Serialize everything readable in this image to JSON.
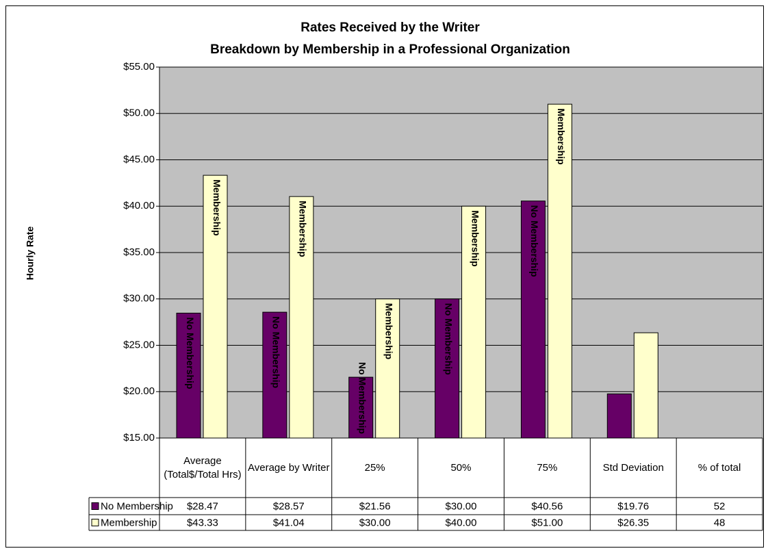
{
  "chart_data": {
    "type": "bar",
    "title": "Rates Received by the Writer",
    "subtitle": "Breakdown by Membership in a Professional Organization",
    "y_label": "Hourly Rate",
    "categories": [
      "Average (Total$/Total Hrs)",
      "Average by Writer",
      "25%",
      "50%",
      "75%",
      "Std Deviation",
      "% of total"
    ],
    "series": [
      {
        "name": "No Membership",
        "color": "#660066",
        "label_color": "#ffffff",
        "values": [
          28.47,
          28.57,
          21.56,
          30.0,
          40.56,
          19.76,
          52
        ],
        "value_labels": [
          "$28.47",
          "$28.57",
          "$21.56",
          "$30.00",
          "$40.56",
          "$19.76",
          "52"
        ]
      },
      {
        "name": "Membership",
        "color": "#ffffcc",
        "label_color": "#000000",
        "values": [
          43.33,
          41.04,
          30.0,
          40.0,
          51.0,
          26.35,
          48
        ],
        "value_labels": [
          "$43.33",
          "$41.04",
          "$30.00",
          "$40.00",
          "$51.00",
          "$26.35",
          "48"
        ]
      }
    ],
    "plotted": [
      true,
      true,
      true,
      true,
      true,
      true,
      false
    ],
    "labeled": [
      true,
      true,
      true,
      true,
      true,
      false,
      false
    ],
    "ylim": [
      15,
      55
    ],
    "yticks": [
      {
        "value": 15,
        "label": "$15.00"
      },
      {
        "value": 20,
        "label": "$20.00"
      },
      {
        "value": 25,
        "label": "$25.00"
      },
      {
        "value": 30,
        "label": "$30.00"
      },
      {
        "value": 35,
        "label": "$35.00"
      },
      {
        "value": 40,
        "label": "$40.00"
      },
      {
        "value": 45,
        "label": "$45.00"
      },
      {
        "value": 50,
        "label": "$50.00"
      },
      {
        "value": 55,
        "label": "$55.00"
      }
    ],
    "grid": true,
    "plot_background": "#c0c0c0",
    "data_table": true
  }
}
